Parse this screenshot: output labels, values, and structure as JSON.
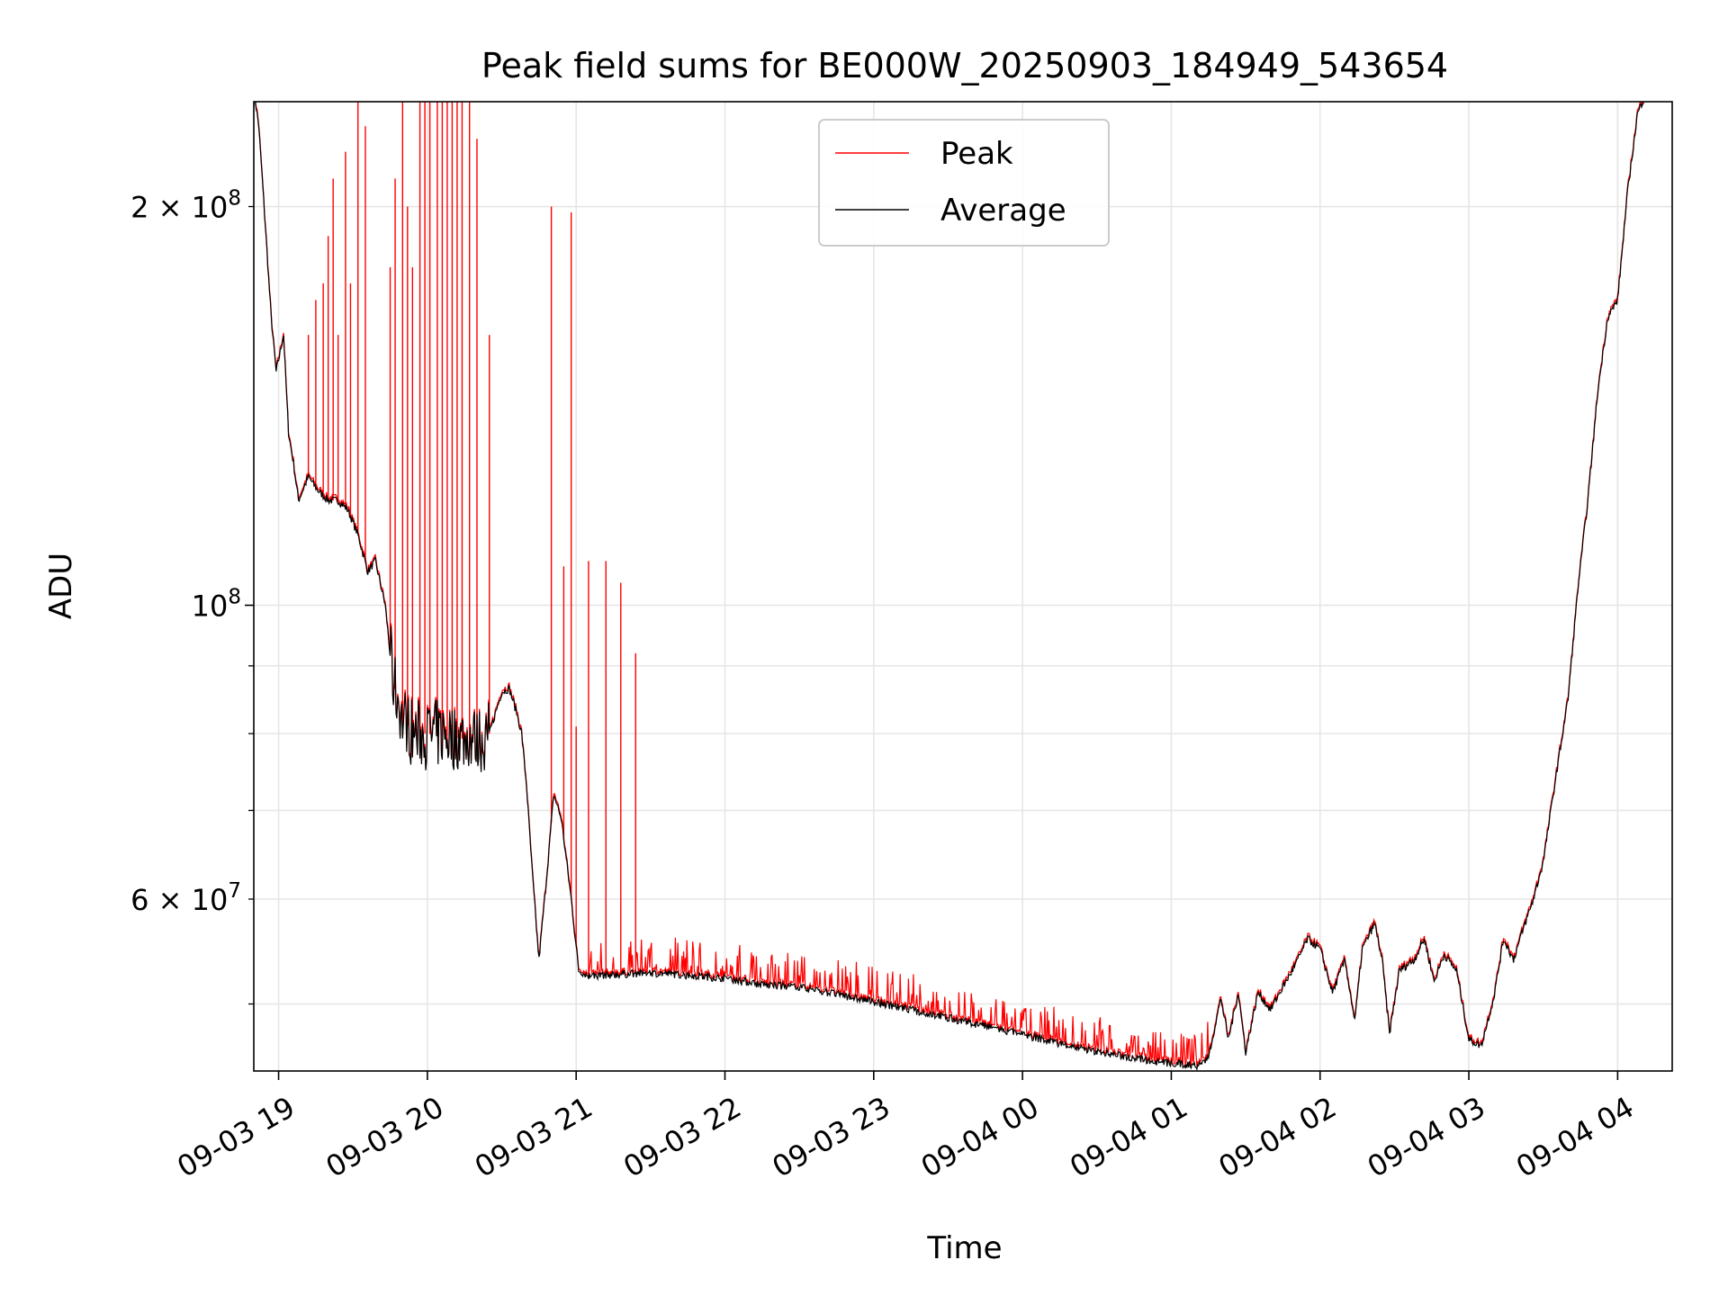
{
  "chart_data": {
    "type": "line",
    "title": "Peak field sums for BE000W_20250903_184949_543654",
    "xlabel": "Time",
    "ylabel": "ADU",
    "yscale": "log",
    "xlim": [
      "2025-09-03 18:50",
      "2025-09-04 04:22"
    ],
    "ylim": [
      44500000,
      240000000
    ],
    "grid": true,
    "legend": "upper center",
    "x_ticks": [
      {
        "t": "2025-09-03 19:00",
        "label": "09-03 19"
      },
      {
        "t": "2025-09-03 20:00",
        "label": "09-03 20"
      },
      {
        "t": "2025-09-03 21:00",
        "label": "09-03 21"
      },
      {
        "t": "2025-09-03 22:00",
        "label": "09-03 22"
      },
      {
        "t": "2025-09-03 23:00",
        "label": "09-03 23"
      },
      {
        "t": "2025-09-04 00:00",
        "label": "09-04 00"
      },
      {
        "t": "2025-09-04 01:00",
        "label": "09-04 01"
      },
      {
        "t": "2025-09-04 02:00",
        "label": "09-04 02"
      },
      {
        "t": "2025-09-04 03:00",
        "label": "09-04 03"
      },
      {
        "t": "2025-09-04 04:00",
        "label": "09-04 04"
      }
    ],
    "y_ticks_major": [
      {
        "value": 100000000,
        "base": "10",
        "exp": "8"
      }
    ],
    "y_ticks_minor": [
      {
        "value": 50000000,
        "mant": "",
        "exp": ""
      },
      {
        "value": 60000000,
        "mant": "6 × 10",
        "exp": "7"
      },
      {
        "value": 70000000,
        "mant": "",
        "exp": ""
      },
      {
        "value": 80000000,
        "mant": "",
        "exp": ""
      },
      {
        "value": 90000000,
        "mant": "",
        "exp": ""
      },
      {
        "value": 200000000,
        "mant": "2 × 10",
        "exp": "8"
      }
    ],
    "series": [
      {
        "name": "Peak",
        "color": "#ff0000"
      },
      {
        "name": "Average",
        "color": "#000000"
      }
    ],
    "average_curve": [
      [
        "2025-09-03 18:50",
        245000000
      ],
      [
        "2025-09-03 18:52",
        230000000
      ],
      [
        "2025-09-03 18:54",
        202000000
      ],
      [
        "2025-09-03 18:57",
        165000000
      ],
      [
        "2025-09-03 18:59",
        150000000
      ],
      [
        "2025-09-03 19:02",
        160000000
      ],
      [
        "2025-09-03 19:04",
        135000000
      ],
      [
        "2025-09-03 19:06",
        128000000
      ],
      [
        "2025-09-03 19:08",
        120000000
      ],
      [
        "2025-09-03 19:12",
        125000000
      ],
      [
        "2025-09-03 19:16",
        122000000
      ],
      [
        "2025-09-03 19:20",
        120000000
      ],
      [
        "2025-09-03 19:24",
        120000000
      ],
      [
        "2025-09-03 19:28",
        118000000
      ],
      [
        "2025-09-03 19:32",
        113000000
      ],
      [
        "2025-09-03 19:36",
        106000000
      ],
      [
        "2025-09-03 19:39",
        108000000
      ],
      [
        "2025-09-03 19:43",
        100000000
      ],
      [
        "2025-09-03 19:46",
        88000000
      ],
      [
        "2025-09-03 19:50",
        82000000
      ],
      [
        "2025-09-03 19:55",
        80000000
      ],
      [
        "2025-09-03 20:00",
        80000000
      ],
      [
        "2025-09-03 20:10",
        79500000
      ],
      [
        "2025-09-03 20:20",
        79000000
      ],
      [
        "2025-09-03 20:25",
        80000000
      ],
      [
        "2025-09-03 20:30",
        86000000
      ],
      [
        "2025-09-03 20:33",
        86500000
      ],
      [
        "2025-09-03 20:36",
        83000000
      ],
      [
        "2025-09-03 20:38",
        80000000
      ],
      [
        "2025-09-03 20:40",
        73000000
      ],
      [
        "2025-09-03 20:42",
        64000000
      ],
      [
        "2025-09-03 20:44",
        57000000
      ],
      [
        "2025-09-03 20:45",
        54000000
      ],
      [
        "2025-09-03 20:48",
        62000000
      ],
      [
        "2025-09-03 20:51",
        72000000
      ],
      [
        "2025-09-03 20:54",
        69000000
      ],
      [
        "2025-09-03 20:58",
        60000000
      ],
      [
        "2025-09-03 21:01",
        53000000
      ],
      [
        "2025-09-03 21:05",
        52500000
      ],
      [
        "2025-09-03 21:30",
        52800000
      ],
      [
        "2025-09-03 22:00",
        52300000
      ],
      [
        "2025-09-03 22:15",
        51700000
      ],
      [
        "2025-09-03 22:30",
        51500000
      ],
      [
        "2025-09-03 23:00",
        50200000
      ],
      [
        "2025-09-03 23:30",
        48800000
      ],
      [
        "2025-09-04 00:00",
        47400000
      ],
      [
        "2025-09-04 00:30",
        46000000
      ],
      [
        "2025-09-04 00:55",
        45200000
      ],
      [
        "2025-09-04 01:10",
        44900000
      ],
      [
        "2025-09-04 01:15",
        45600000
      ],
      [
        "2025-09-04 01:20",
        50500000
      ],
      [
        "2025-09-04 01:23",
        47000000
      ],
      [
        "2025-09-04 01:27",
        51000000
      ],
      [
        "2025-09-04 01:30",
        46000000
      ],
      [
        "2025-09-04 01:35",
        51000000
      ],
      [
        "2025-09-04 01:40",
        49500000
      ],
      [
        "2025-09-04 01:45",
        51500000
      ],
      [
        "2025-09-04 01:50",
        53500000
      ],
      [
        "2025-09-04 01:55",
        56000000
      ],
      [
        "2025-09-04 02:00",
        55000000
      ],
      [
        "2025-09-04 02:05",
        51000000
      ],
      [
        "2025-09-04 02:10",
        54000000
      ],
      [
        "2025-09-04 02:14",
        48500000
      ],
      [
        "2025-09-04 02:17",
        55000000
      ],
      [
        "2025-09-04 02:22",
        57500000
      ],
      [
        "2025-09-04 02:25",
        54000000
      ],
      [
        "2025-09-04 02:28",
        47500000
      ],
      [
        "2025-09-04 02:32",
        53000000
      ],
      [
        "2025-09-04 02:38",
        54000000
      ],
      [
        "2025-09-04 02:42",
        56000000
      ],
      [
        "2025-09-04 02:46",
        52000000
      ],
      [
        "2025-09-04 02:50",
        54500000
      ],
      [
        "2025-09-04 02:55",
        53000000
      ],
      [
        "2025-09-04 03:00",
        47000000
      ],
      [
        "2025-09-04 03:05",
        46500000
      ],
      [
        "2025-09-04 03:10",
        50500000
      ],
      [
        "2025-09-04 03:14",
        56000000
      ],
      [
        "2025-09-04 03:18",
        54000000
      ],
      [
        "2025-09-04 03:22",
        57000000
      ],
      [
        "2025-09-04 03:26",
        60000000
      ],
      [
        "2025-09-04 03:30",
        64000000
      ],
      [
        "2025-09-04 03:35",
        74000000
      ],
      [
        "2025-09-04 03:40",
        85000000
      ],
      [
        "2025-09-04 03:44",
        103000000
      ],
      [
        "2025-09-04 03:48",
        120000000
      ],
      [
        "2025-09-04 03:52",
        145000000
      ],
      [
        "2025-09-04 03:56",
        165000000
      ],
      [
        "2025-09-04 04:00",
        170000000
      ],
      [
        "2025-09-04 04:04",
        205000000
      ],
      [
        "2025-09-04 04:08",
        235000000
      ],
      [
        "2025-09-04 04:12",
        245000000
      ]
    ],
    "peak_spikes": [
      [
        "2025-09-03 19:12",
        160000000
      ],
      [
        "2025-09-03 19:15",
        170000000
      ],
      [
        "2025-09-03 19:18",
        175000000
      ],
      [
        "2025-09-03 19:20",
        190000000
      ],
      [
        "2025-09-03 19:22",
        210000000
      ],
      [
        "2025-09-03 19:24",
        160000000
      ],
      [
        "2025-09-03 19:27",
        220000000
      ],
      [
        "2025-09-03 19:29",
        175000000
      ],
      [
        "2025-09-03 19:32",
        240000000
      ],
      [
        "2025-09-03 19:35",
        230000000
      ],
      [
        "2025-09-03 19:45",
        180000000
      ],
      [
        "2025-09-03 19:47",
        210000000
      ],
      [
        "2025-09-03 19:50",
        240000000
      ],
      [
        "2025-09-03 19:52",
        200000000
      ],
      [
        "2025-09-03 19:54",
        180000000
      ],
      [
        "2025-09-03 19:57",
        240000000
      ],
      [
        "2025-09-03 19:59",
        240000000
      ],
      [
        "2025-09-03 20:01",
        240000000
      ],
      [
        "2025-09-03 20:04",
        240000000
      ],
      [
        "2025-09-03 20:06",
        240000000
      ],
      [
        "2025-09-03 20:08",
        240000000
      ],
      [
        "2025-09-03 20:10",
        240000000
      ],
      [
        "2025-09-03 20:12",
        240000000
      ],
      [
        "2025-09-03 20:14",
        240000000
      ],
      [
        "2025-09-03 20:17",
        240000000
      ],
      [
        "2025-09-03 20:20",
        225000000
      ],
      [
        "2025-09-03 20:25",
        160000000
      ],
      [
        "2025-09-03 20:50",
        200000000
      ],
      [
        "2025-09-03 20:55",
        107000000
      ],
      [
        "2025-09-03 20:58",
        198000000
      ],
      [
        "2025-09-03 21:00",
        81000000
      ],
      [
        "2025-09-03 21:05",
        108000000
      ],
      [
        "2025-09-03 21:12",
        108000000
      ],
      [
        "2025-09-03 21:18",
        104000000
      ],
      [
        "2025-09-03 21:24",
        92000000
      ]
    ],
    "peak_noise_end": "2025-09-04 01:15"
  }
}
